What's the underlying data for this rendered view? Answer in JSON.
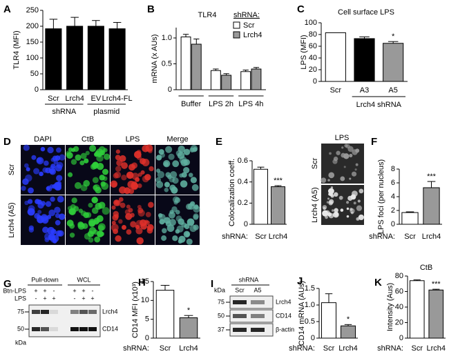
{
  "chart_data": [
    {
      "type": "bar",
      "panel": "A",
      "ylabel": "TLR4 (MFI)",
      "categories": [
        "Scr",
        "Lrch4",
        "EV",
        "Lrch4-FL"
      ],
      "values": [
        192,
        200,
        200,
        192
      ],
      "errors": [
        30,
        28,
        18,
        20
      ],
      "colors": [
        "#000000",
        "#000000",
        "#000000",
        "#000000"
      ],
      "group_labels": [
        "shRNA",
        "plasmid"
      ],
      "ylim": [
        0,
        250
      ],
      "yticks": [
        0,
        50,
        100,
        150,
        200,
        250
      ]
    },
    {
      "type": "bar",
      "panel": "B",
      "title": "TLR4",
      "ylabel": "mRNA (x AUs)",
      "legend_title": "shRNA:",
      "categories": [
        "Buffer",
        "LPS 2h",
        "LPS 4h"
      ],
      "series": [
        {
          "name": "Scr",
          "color": "#ffffff",
          "values": [
            1.02,
            0.37,
            0.35
          ],
          "errors": [
            0.05,
            0.03,
            0.03
          ]
        },
        {
          "name": "Lrch4",
          "color": "#999999",
          "values": [
            0.88,
            0.28,
            0.4
          ],
          "errors": [
            0.1,
            0.03,
            0.03
          ]
        }
      ],
      "ylim": [
        0,
        1.2
      ],
      "yticks": [
        0,
        0.5,
        {
          "value": 1,
          "label": "1.0"
        }
      ]
    },
    {
      "type": "bar",
      "panel": "C",
      "title": "Cell surface LPS",
      "ylabel": "LPS (MFI)",
      "categories": [
        "Scr",
        "A3",
        "A5"
      ],
      "values": [
        83,
        73,
        65
      ],
      "errors": [
        0,
        3,
        3
      ],
      "colors": [
        "#ffffff",
        "#000000",
        "#999999"
      ],
      "significance": [
        null,
        null,
        "*"
      ],
      "group_labels": [
        "Lrch4 shRNA"
      ],
      "ylim": [
        0,
        100
      ],
      "yticks": [
        0,
        20,
        40,
        60,
        80,
        100
      ]
    },
    {
      "type": "bar",
      "panel": "E",
      "ylabel": "Colocalization coeff.",
      "x_label": "shRNA:",
      "categories": [
        "Scr",
        "Lrch4"
      ],
      "values": [
        0.52,
        0.355
      ],
      "errors": [
        0.02,
        0.01
      ],
      "colors": [
        "#ffffff",
        "#999999"
      ],
      "significance": [
        null,
        "***"
      ],
      "ylim": [
        0,
        0.6
      ],
      "yticks": [
        0,
        0.2,
        0.4,
        0.6
      ]
    },
    {
      "type": "bar",
      "panel": "F",
      "ylabel": "LPS foci (per nucleus)",
      "x_label": "shRNA:",
      "categories": [
        "Scr",
        "Lrch4"
      ],
      "values": [
        1.7,
        5.3
      ],
      "errors": [
        0.1,
        0.9
      ],
      "colors": [
        "#ffffff",
        "#999999"
      ],
      "significance": [
        null,
        "***"
      ],
      "ylim": [
        0,
        8
      ],
      "yticks": [
        0,
        2,
        4,
        6,
        8
      ]
    },
    {
      "type": "bar",
      "panel": "H",
      "ylabel": "CD14 MFI (x10³)",
      "x_label": "shRNA:",
      "categories": [
        "Scr",
        "Lrch4"
      ],
      "values": [
        12.7,
        5.4
      ],
      "errors": [
        1.3,
        0.6
      ],
      "colors": [
        "#ffffff",
        "#999999"
      ],
      "significance": [
        null,
        "*"
      ],
      "ylim": [
        0,
        15
      ],
      "yticks": [
        0,
        5,
        10,
        15
      ]
    },
    {
      "type": "bar",
      "panel": "J",
      "ylabel": "CD14 mRNA (AUs)",
      "x_label": "shRNA:",
      "categories": [
        "Scr",
        "Lrch4"
      ],
      "values": [
        1.07,
        0.37
      ],
      "errors": [
        0.27,
        0.04
      ],
      "colors": [
        "#ffffff",
        "#999999"
      ],
      "significance": [
        null,
        "*"
      ],
      "ylim": [
        0,
        1.5
      ],
      "yticks": [
        0,
        0.5,
        {
          "value": 1,
          "label": "1.0"
        },
        1.5
      ]
    },
    {
      "type": "bar",
      "panel": "K",
      "title": "CtB",
      "ylabel": "Intensity (Aus)",
      "x_label": "shRNA:",
      "categories": [
        "Scr",
        "Lrch4"
      ],
      "values": [
        74,
        62
      ],
      "errors": [
        1,
        1
      ],
      "colors": [
        "#ffffff",
        "#999999"
      ],
      "significance": [
        null,
        "***"
      ],
      "ylim": [
        0,
        80
      ],
      "yticks": [
        0,
        20,
        40,
        60,
        80
      ]
    }
  ],
  "microscopy": {
    "panel": "D",
    "columns": [
      "DAPI",
      "CtB",
      "LPS",
      "Merge"
    ],
    "rows": [
      "Scr",
      "Lrch4 (A5)"
    ]
  },
  "foci_images": {
    "title": "LPS",
    "rows": [
      "Scr",
      "Lrch4 (A5)"
    ]
  },
  "blot_g": {
    "panel": "G",
    "headers": [
      "Pull-down",
      "WCL"
    ],
    "conditions": [
      {
        "label": "Btn-LPS",
        "signs": [
          "+",
          "+",
          "-",
          "+",
          "+",
          "-"
        ]
      },
      {
        "label": "LPS",
        "signs": [
          "-",
          "+",
          "+",
          "-",
          "+",
          "+"
        ]
      }
    ],
    "markers": [
      "75",
      "50"
    ],
    "unit": "kDa",
    "bands": [
      "Lrch4",
      "CD14"
    ]
  },
  "blot_i": {
    "panel": "I",
    "header": "shRNA",
    "unit": "kDa",
    "lanes": [
      "Scr",
      "A5"
    ],
    "markers": [
      "75",
      "50",
      "37"
    ],
    "bands": [
      "Lrch4",
      "CD14",
      "β-actin"
    ]
  }
}
